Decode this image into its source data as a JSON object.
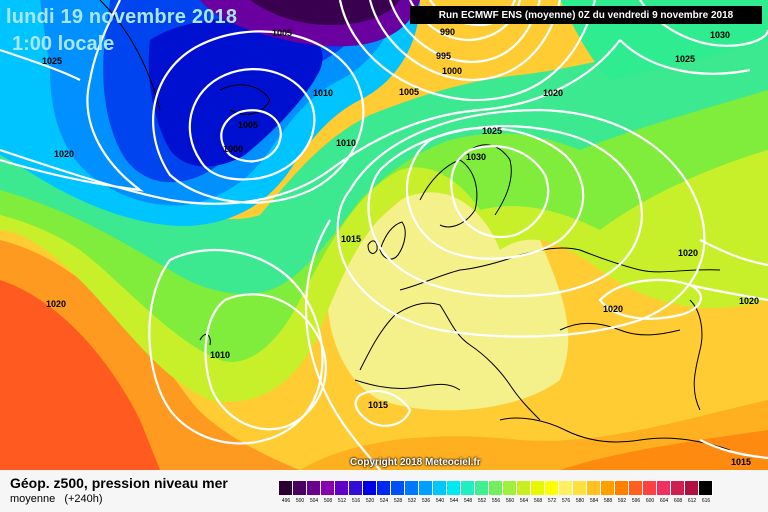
{
  "title": {
    "date": "lundi 19 novembre 2018",
    "time": "1:00 locale"
  },
  "run_info": "Run ECMWF ENS (moyenne) 0Z du vendredi 9 novembre 2018",
  "copyright": "Copyright 2018 Meteociel.fr",
  "parameter": "Géop. z500, pression niveau mer",
  "subtitle": {
    "stat": "moyenne",
    "lead": "(+240h)"
  },
  "isobar_labels": [
    "1005",
    "990",
    "995",
    "1000",
    "1005",
    "1010",
    "1005",
    "1000",
    "1025",
    "1020",
    "1010",
    "1020",
    "1025",
    "1030",
    "1015",
    "1020",
    "1020",
    "1020",
    "1030",
    "1025",
    "1020",
    "1010",
    "1015",
    "1015"
  ],
  "colorbar": {
    "labels": [
      "496",
      "500",
      "504",
      "508",
      "512",
      "516",
      "520",
      "524",
      "528",
      "532",
      "536",
      "540",
      "544",
      "548",
      "552",
      "556",
      "560",
      "564",
      "568",
      "572",
      "576",
      "580",
      "584",
      "588",
      "592",
      "596",
      "600",
      "604",
      "608",
      "612",
      "616"
    ],
    "colors": [
      "#2a0030",
      "#4a0060",
      "#6a0090",
      "#8800b0",
      "#6000c8",
      "#3010d8",
      "#0000e8",
      "#0028f0",
      "#0050f8",
      "#0078ff",
      "#00a0ff",
      "#00c8ff",
      "#00e8f0",
      "#20f0c0",
      "#40f090",
      "#70f060",
      "#a0f040",
      "#c8f020",
      "#e8f800",
      "#ffff00",
      "#fff060",
      "#ffe040",
      "#ffc020",
      "#ffa000",
      "#ff8000",
      "#ff6020",
      "#ff4040",
      "#f03060",
      "#d02050",
      "#b01040",
      "#000000"
    ]
  }
}
